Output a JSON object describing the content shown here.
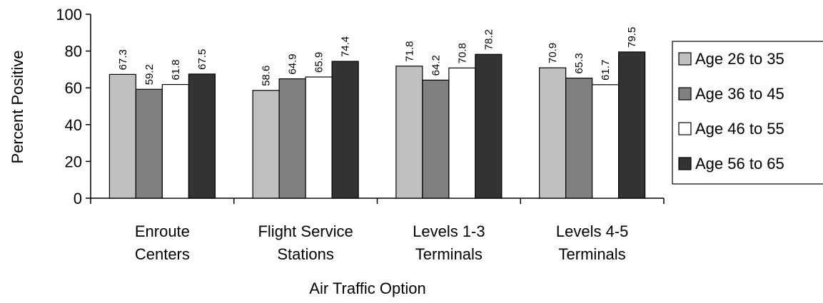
{
  "chart_data": {
    "type": "bar",
    "ylabel": "Percent Positive",
    "xlabel": "Air Traffic Option",
    "ylim": [
      0,
      100
    ],
    "yticks": [
      0,
      20,
      40,
      60,
      80,
      100
    ],
    "grid": false,
    "legend_position": "right",
    "categories": [
      [
        "Enroute",
        "Centers"
      ],
      [
        "Flight Service",
        "Stations"
      ],
      [
        "Levels 1-3",
        "Terminals"
      ],
      [
        "Levels 4-5",
        "Terminals"
      ]
    ],
    "series": [
      {
        "name": "Age 26 to 35",
        "color": "#c0c0c0",
        "values": [
          67.3,
          58.6,
          71.8,
          70.9
        ]
      },
      {
        "name": "Age 36 to 45",
        "color": "#808080",
        "values": [
          59.2,
          64.9,
          64.2,
          65.3
        ]
      },
      {
        "name": "Age 46 to 55",
        "color": "#ffffff",
        "values": [
          61.8,
          65.9,
          70.8,
          61.7
        ]
      },
      {
        "name": "Age 56 to 65",
        "color": "#333333",
        "values": [
          67.5,
          74.4,
          78.2,
          79.5
        ]
      }
    ]
  }
}
